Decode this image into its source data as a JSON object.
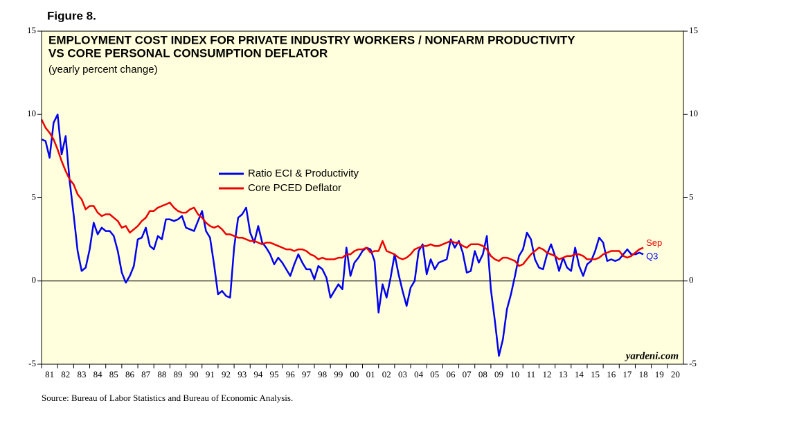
{
  "figure_label": "Figure 8.",
  "chart_data": {
    "type": "line",
    "title": [
      "EMPLOYMENT COST INDEX FOR PRIVATE INDUSTRY WORKERS / NONFARM PRODUCTIVITY",
      "VS CORE PERSONAL CONSUMPTION DEFLATOR"
    ],
    "subtitle": "(yearly percent change)",
    "watermark": "yardeni.com",
    "source": "Source: Bureau of Labor Statistics and Bureau of Economic Analysis.",
    "legend": "upper-left",
    "background": "#ffffdd",
    "xlim": [
      1981,
      2021
    ],
    "ylim": [
      -5,
      15
    ],
    "yticks": [
      -5,
      0,
      5,
      10,
      15
    ],
    "xticks": [
      {
        "value": 1981,
        "label": "81"
      },
      {
        "value": 1982,
        "label": "82"
      },
      {
        "value": 1983,
        "label": "83"
      },
      {
        "value": 1984,
        "label": "84"
      },
      {
        "value": 1985,
        "label": "85"
      },
      {
        "value": 1986,
        "label": "86"
      },
      {
        "value": 1987,
        "label": "87"
      },
      {
        "value": 1988,
        "label": "88"
      },
      {
        "value": 1989,
        "label": "89"
      },
      {
        "value": 1990,
        "label": "90"
      },
      {
        "value": 1991,
        "label": "91"
      },
      {
        "value": 1992,
        "label": "92"
      },
      {
        "value": 1993,
        "label": "93"
      },
      {
        "value": 1994,
        "label": "94"
      },
      {
        "value": 1995,
        "label": "95"
      },
      {
        "value": 1996,
        "label": "96"
      },
      {
        "value": 1997,
        "label": "97"
      },
      {
        "value": 1998,
        "label": "98"
      },
      {
        "value": 1999,
        "label": "99"
      },
      {
        "value": 2000,
        "label": "00"
      },
      {
        "value": 2001,
        "label": "01"
      },
      {
        "value": 2002,
        "label": "02"
      },
      {
        "value": 2003,
        "label": "03"
      },
      {
        "value": 2004,
        "label": "04"
      },
      {
        "value": 2005,
        "label": "05"
      },
      {
        "value": 2006,
        "label": "06"
      },
      {
        "value": 2007,
        "label": "07"
      },
      {
        "value": 2008,
        "label": "08"
      },
      {
        "value": 2009,
        "label": "09"
      },
      {
        "value": 2010,
        "label": "10"
      },
      {
        "value": 2011,
        "label": "11"
      },
      {
        "value": 2012,
        "label": "12"
      },
      {
        "value": 2013,
        "label": "13"
      },
      {
        "value": 2014,
        "label": "14"
      },
      {
        "value": 2015,
        "label": "15"
      },
      {
        "value": 2016,
        "label": "16"
      },
      {
        "value": 2017,
        "label": "17"
      },
      {
        "value": 2018,
        "label": "18"
      },
      {
        "value": 2019,
        "label": "19"
      },
      {
        "value": 2020,
        "label": "20"
      }
    ],
    "x": [
      1981,
      1981.25,
      1981.5,
      1981.75,
      1982,
      1982.25,
      1982.5,
      1982.75,
      1983,
      1983.25,
      1983.5,
      1983.75,
      1984,
      1984.25,
      1984.5,
      1984.75,
      1985,
      1985.25,
      1985.5,
      1985.75,
      1986,
      1986.25,
      1986.5,
      1986.75,
      1987,
      1987.25,
      1987.5,
      1987.75,
      1988,
      1988.25,
      1988.5,
      1988.75,
      1989,
      1989.25,
      1989.5,
      1989.75,
      1990,
      1990.25,
      1990.5,
      1990.75,
      1991,
      1991.25,
      1991.5,
      1991.75,
      1992,
      1992.25,
      1992.5,
      1992.75,
      1993,
      1993.25,
      1993.5,
      1993.75,
      1994,
      1994.25,
      1994.5,
      1994.75,
      1995,
      1995.25,
      1995.5,
      1995.75,
      1996,
      1996.25,
      1996.5,
      1996.75,
      1997,
      1997.25,
      1997.5,
      1997.75,
      1998,
      1998.25,
      1998.5,
      1998.75,
      1999,
      1999.25,
      1999.5,
      1999.75,
      2000,
      2000.25,
      2000.5,
      2000.75,
      2001,
      2001.25,
      2001.5,
      2001.75,
      2002,
      2002.25,
      2002.5,
      2002.75,
      2003,
      2003.25,
      2003.5,
      2003.75,
      2004,
      2004.25,
      2004.5,
      2004.75,
      2005,
      2005.25,
      2005.5,
      2005.75,
      2006,
      2006.25,
      2006.5,
      2006.75,
      2007,
      2007.25,
      2007.5,
      2007.75,
      2008,
      2008.25,
      2008.5,
      2008.75,
      2009,
      2009.25,
      2009.5,
      2009.75,
      2010,
      2010.25,
      2010.5,
      2010.75,
      2011,
      2011.25,
      2011.5,
      2011.75,
      2012,
      2012.25,
      2012.5,
      2012.75,
      2013,
      2013.25,
      2013.5,
      2013.75,
      2014,
      2014.25,
      2014.5,
      2014.75,
      2015,
      2015.25,
      2015.5,
      2015.75,
      2016,
      2016.25,
      2016.5,
      2016.75,
      2017,
      2017.25,
      2017.5,
      2017.75,
      2018,
      2018.25,
      2018.5
    ],
    "series": [
      {
        "name": "Ratio ECI & Productivity",
        "color": "#0000ee",
        "end_label": "Q3",
        "values": [
          8.5,
          8.4,
          7.4,
          9.5,
          10.0,
          7.6,
          8.7,
          6.0,
          4.0,
          1.8,
          0.6,
          0.8,
          1.9,
          3.5,
          2.8,
          3.2,
          3.0,
          3.0,
          2.7,
          1.8,
          0.5,
          -0.1,
          0.3,
          0.9,
          2.5,
          2.6,
          3.2,
          2.1,
          1.9,
          2.7,
          2.5,
          3.7,
          3.7,
          3.6,
          3.7,
          3.9,
          3.2,
          3.1,
          3.0,
          3.6,
          4.2,
          3.0,
          2.6,
          1.0,
          -0.8,
          -0.6,
          -0.9,
          -1.0,
          2.0,
          3.8,
          4.0,
          4.4,
          2.9,
          2.3,
          3.3,
          2.3,
          2.0,
          1.6,
          1.0,
          1.4,
          1.1,
          0.7,
          0.3,
          1.0,
          1.6,
          1.1,
          0.7,
          0.7,
          0.1,
          0.9,
          0.7,
          0.2,
          -1.0,
          -0.6,
          -0.2,
          -0.5,
          2.0,
          0.3,
          1.1,
          1.4,
          1.8,
          2.0,
          1.9,
          1.2,
          -1.9,
          -0.2,
          -1.0,
          0.2,
          1.6,
          0.4,
          -0.6,
          -1.5,
          -0.4,
          0.0,
          1.8,
          2.2,
          0.4,
          1.3,
          0.7,
          1.1,
          1.2,
          1.3,
          2.5,
          2.0,
          2.4,
          1.7,
          0.5,
          0.6,
          1.8,
          1.1,
          1.6,
          2.7,
          -0.5,
          -2.4,
          -4.5,
          -3.5,
          -1.7,
          -0.8,
          0.3,
          1.5,
          1.9,
          2.9,
          2.5,
          1.3,
          0.8,
          0.7,
          1.6,
          2.2,
          1.5,
          0.6,
          1.4,
          0.8,
          0.6,
          2.0,
          0.9,
          0.3,
          1.0,
          1.2,
          1.8,
          2.6,
          2.3,
          1.2,
          1.3,
          1.2,
          1.3,
          1.6,
          1.9,
          1.6,
          1.6,
          1.7,
          1.6
        ]
      },
      {
        "name": "Core PCED Deflator",
        "color": "#ee0000",
        "end_label": "Sep",
        "values": [
          9.7,
          9.2,
          8.9,
          8.5,
          7.9,
          7.2,
          6.6,
          6.1,
          5.8,
          5.2,
          4.9,
          4.3,
          4.5,
          4.5,
          4.1,
          3.9,
          4.0,
          4.0,
          3.8,
          3.6,
          3.2,
          3.3,
          2.9,
          3.1,
          3.3,
          3.6,
          3.8,
          4.2,
          4.2,
          4.4,
          4.5,
          4.6,
          4.7,
          4.4,
          4.2,
          4.1,
          4.1,
          4.3,
          4.4,
          4.0,
          3.8,
          3.5,
          3.3,
          3.2,
          3.3,
          3.1,
          2.8,
          2.8,
          2.7,
          2.6,
          2.6,
          2.5,
          2.4,
          2.4,
          2.3,
          2.2,
          2.3,
          2.3,
          2.2,
          2.1,
          2.0,
          1.9,
          1.9,
          1.8,
          1.9,
          1.9,
          1.8,
          1.6,
          1.5,
          1.3,
          1.4,
          1.3,
          1.3,
          1.3,
          1.4,
          1.4,
          1.6,
          1.6,
          1.8,
          1.9,
          1.9,
          2.0,
          1.7,
          1.8,
          1.8,
          2.4,
          1.8,
          1.7,
          1.6,
          1.4,
          1.3,
          1.4,
          1.6,
          1.9,
          2.0,
          2.1,
          2.1,
          2.2,
          2.1,
          2.1,
          2.2,
          2.3,
          2.4,
          2.3,
          2.3,
          2.1,
          2.0,
          2.2,
          2.2,
          2.2,
          2.1,
          1.9,
          1.5,
          1.3,
          1.2,
          1.4,
          1.4,
          1.3,
          1.2,
          0.9,
          1.0,
          1.3,
          1.6,
          1.8,
          2.0,
          1.9,
          1.7,
          1.6,
          1.5,
          1.3,
          1.4,
          1.5,
          1.5,
          1.6,
          1.6,
          1.5,
          1.3,
          1.3,
          1.3,
          1.4,
          1.6,
          1.7,
          1.8,
          1.8,
          1.8,
          1.5,
          1.4,
          1.5,
          1.7,
          1.9,
          2.0
        ]
      }
    ]
  }
}
